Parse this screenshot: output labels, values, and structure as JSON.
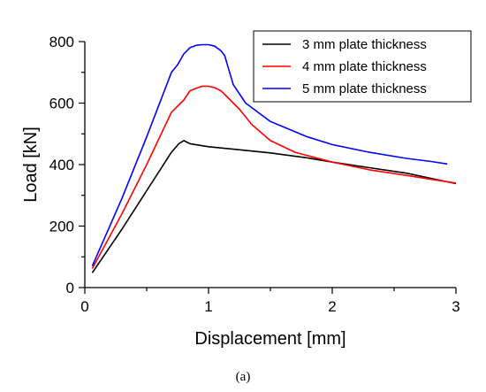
{
  "chart_data": {
    "type": "line",
    "xlabel": "Displacement [mm]",
    "ylabel": "Load [kN]",
    "xlim": [
      0,
      3
    ],
    "ylim": [
      0,
      800
    ],
    "xticks": [
      0,
      1,
      2,
      3
    ],
    "yticks": [
      0,
      200,
      400,
      600,
      800
    ],
    "x_minor_step": 0.5,
    "y_minor_step": 100,
    "grid": false,
    "legend_position": "top-right",
    "caption": "(a)",
    "series": [
      {
        "name": "3 mm plate thickness",
        "color": "#000000",
        "points": [
          [
            0.06,
            48
          ],
          [
            0.3,
            190
          ],
          [
            0.5,
            315
          ],
          [
            0.7,
            440
          ],
          [
            0.76,
            468
          ],
          [
            0.8,
            478
          ],
          [
            0.85,
            468
          ],
          [
            1.0,
            458
          ],
          [
            1.2,
            450
          ],
          [
            1.5,
            438
          ],
          [
            1.8,
            422
          ],
          [
            2.0,
            408
          ],
          [
            2.3,
            390
          ],
          [
            2.6,
            372
          ],
          [
            2.8,
            355
          ],
          [
            3.0,
            338
          ]
        ]
      },
      {
        "name": "4 mm plate thickness",
        "color": "#ff0000",
        "points": [
          [
            0.06,
            62
          ],
          [
            0.3,
            240
          ],
          [
            0.5,
            400
          ],
          [
            0.7,
            570
          ],
          [
            0.8,
            610
          ],
          [
            0.85,
            640
          ],
          [
            0.9,
            648
          ],
          [
            0.95,
            655
          ],
          [
            1.0,
            655
          ],
          [
            1.05,
            650
          ],
          [
            1.1,
            640
          ],
          [
            1.15,
            620
          ],
          [
            1.25,
            580
          ],
          [
            1.35,
            530
          ],
          [
            1.5,
            478
          ],
          [
            1.7,
            440
          ],
          [
            2.0,
            408
          ],
          [
            2.3,
            383
          ],
          [
            2.6,
            365
          ],
          [
            2.8,
            352
          ],
          [
            3.0,
            340
          ]
        ]
      },
      {
        "name": "5 mm plate thickness",
        "color": "#0000ff",
        "points": [
          [
            0.06,
            70
          ],
          [
            0.3,
            290
          ],
          [
            0.5,
            490
          ],
          [
            0.7,
            700
          ],
          [
            0.75,
            725
          ],
          [
            0.8,
            760
          ],
          [
            0.85,
            780
          ],
          [
            0.9,
            788
          ],
          [
            0.95,
            790
          ],
          [
            1.0,
            790
          ],
          [
            1.05,
            785
          ],
          [
            1.1,
            770
          ],
          [
            1.13,
            755
          ],
          [
            1.2,
            660
          ],
          [
            1.3,
            600
          ],
          [
            1.5,
            540
          ],
          [
            1.8,
            490
          ],
          [
            2.0,
            465
          ],
          [
            2.3,
            440
          ],
          [
            2.6,
            420
          ],
          [
            2.8,
            410
          ],
          [
            2.93,
            402
          ]
        ]
      }
    ]
  }
}
